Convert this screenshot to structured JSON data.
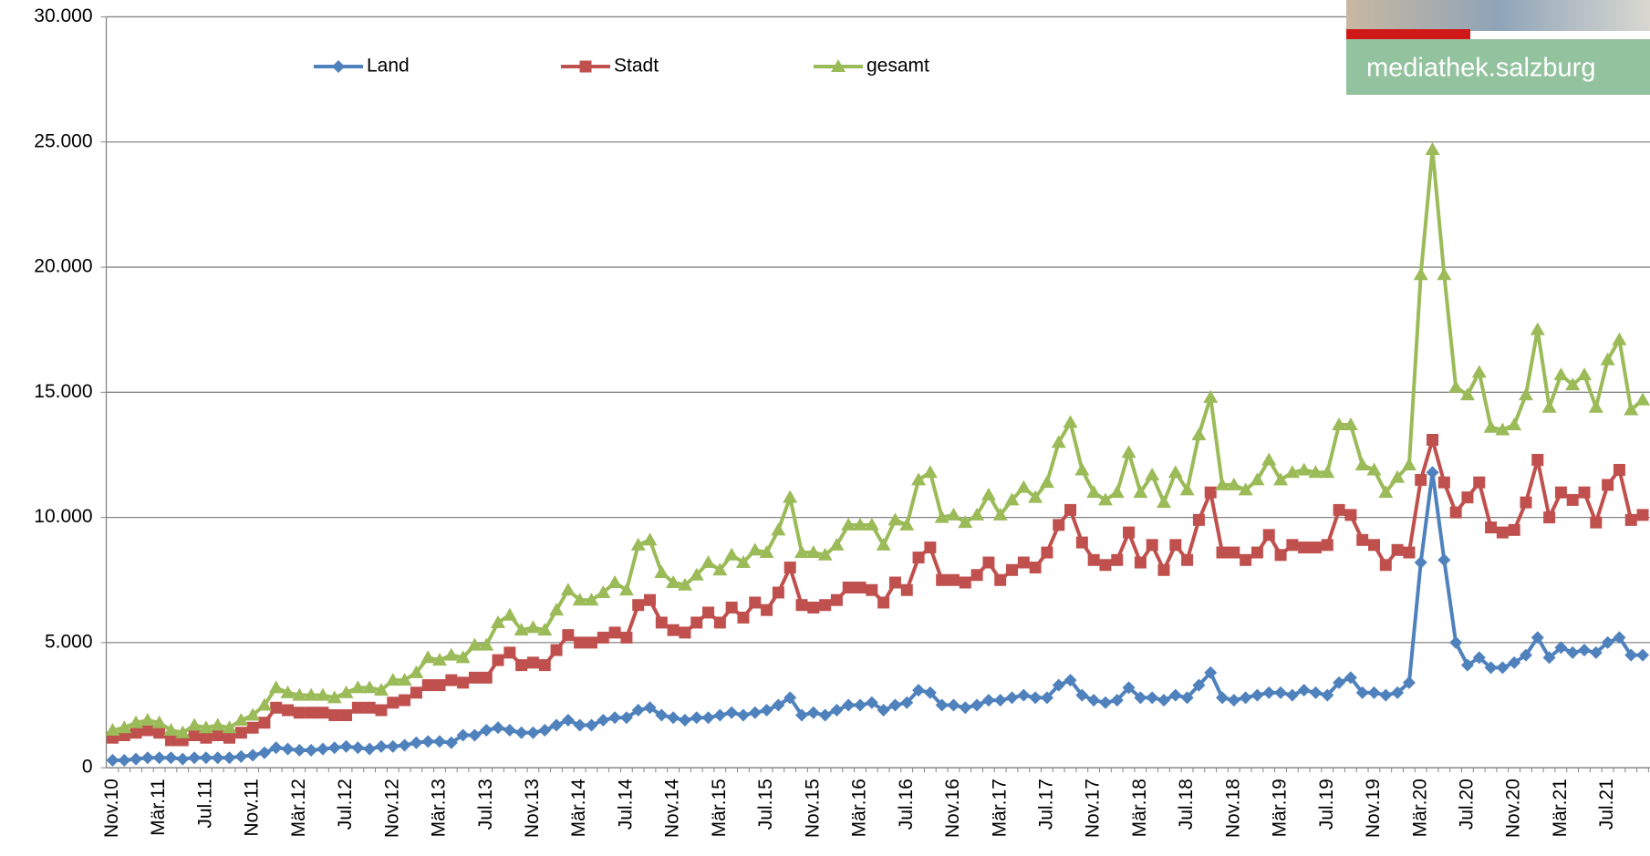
{
  "chart_data": {
    "type": "line",
    "categories": [
      "Nov.10",
      null,
      null,
      null,
      "Mär.11",
      null,
      null,
      null,
      "Jul.11",
      null,
      null,
      null,
      "Nov.11",
      null,
      null,
      null,
      "Mär.12",
      null,
      null,
      null,
      "Jul.12",
      null,
      null,
      null,
      "Nov.12",
      null,
      null,
      null,
      "Mär.13",
      null,
      null,
      null,
      "Jul.13",
      null,
      null,
      null,
      "Nov.13",
      null,
      null,
      null,
      "Mär.14",
      null,
      null,
      null,
      "Jul.14",
      null,
      null,
      null,
      "Nov.14",
      null,
      null,
      null,
      "Mär.15",
      null,
      null,
      null,
      "Jul.15",
      null,
      null,
      null,
      "Nov.15",
      null,
      null,
      null,
      "Mär.16",
      null,
      null,
      null,
      "Jul.16",
      null,
      null,
      null,
      "Nov.16",
      null,
      null,
      null,
      "Mär.17",
      null,
      null,
      null,
      "Jul.17",
      null,
      null,
      null,
      "Nov.17",
      null,
      null,
      null,
      "Mär.18",
      null,
      null,
      null,
      "Jul.18",
      null,
      null,
      null,
      "Nov.18",
      null,
      null,
      null,
      "Mär.19",
      null,
      null,
      null,
      "Jul.19",
      null,
      null,
      null,
      "Nov.19",
      null,
      null,
      null,
      "Mär.20",
      null,
      null,
      null,
      "Jul.20",
      null,
      null,
      null,
      "Nov.20",
      null,
      null,
      null,
      "Mär.21",
      null,
      null,
      null,
      "Jul.21",
      null,
      null,
      null
    ],
    "series": [
      {
        "name": "Land",
        "color": "#4f81bd",
        "marker": "diamond",
        "values": [
          300,
          300,
          350,
          400,
          400,
          400,
          350,
          400,
          400,
          400,
          400,
          450,
          500,
          600,
          800,
          750,
          700,
          700,
          750,
          800,
          850,
          800,
          750,
          850,
          850,
          900,
          1000,
          1050,
          1050,
          1000,
          1300,
          1300,
          1500,
          1600,
          1500,
          1400,
          1400,
          1500,
          1700,
          1900,
          1700,
          1700,
          1900,
          2000,
          2000,
          2300,
          2400,
          2100,
          2000,
          1900,
          2000,
          2000,
          2100,
          2200,
          2100,
          2200,
          2300,
          2500,
          2800,
          2100,
          2200,
          2100,
          2300,
          2500,
          2500,
          2600,
          2300,
          2500,
          2600,
          3100,
          3000,
          2500,
          2500,
          2400,
          2500,
          2700,
          2700,
          2800,
          2900,
          2800,
          2800,
          3300,
          3500,
          2900,
          2700,
          2600,
          2700,
          3200,
          2800,
          2800,
          2700,
          2900,
          2800,
          3300,
          3800,
          2800,
          2700,
          2800,
          2900,
          3000,
          3000,
          2900,
          3100,
          3000,
          2900,
          3400,
          3600,
          3000,
          3000,
          2900,
          3000,
          3400,
          8200,
          11800,
          8300,
          5000,
          4100,
          4400,
          4000,
          4000,
          4200,
          4500,
          5200,
          4400,
          4800,
          4600,
          4700,
          4600,
          5000,
          5200,
          4500,
          4500
        ]
      },
      {
        "name": "Stadt",
        "color": "#c0504d",
        "marker": "square",
        "values": [
          1200,
          1300,
          1400,
          1500,
          1400,
          1100,
          1100,
          1300,
          1200,
          1300,
          1200,
          1400,
          1600,
          1800,
          2400,
          2300,
          2200,
          2200,
          2200,
          2100,
          2100,
          2400,
          2400,
          2300,
          2600,
          2700,
          3000,
          3300,
          3300,
          3500,
          3400,
          3600,
          3600,
          4300,
          4600,
          4100,
          4200,
          4100,
          4700,
          5300,
          5000,
          5000,
          5200,
          5400,
          5200,
          6500,
          6700,
          5800,
          5500,
          5400,
          5800,
          6200,
          5800,
          6400,
          6000,
          6600,
          6300,
          7000,
          8000,
          6500,
          6400,
          6500,
          6700,
          7200,
          7200,
          7100,
          6600,
          7400,
          7100,
          8400,
          8800,
          7500,
          7500,
          7400,
          7700,
          8200,
          7500,
          7900,
          8200,
          8000,
          8600,
          9700,
          10300,
          9000,
          8300,
          8100,
          8300,
          9400,
          8200,
          8900,
          7900,
          8900,
          8300,
          9900,
          11000,
          8600,
          8600,
          8300,
          8600,
          9300,
          8500,
          8900,
          8800,
          8800,
          8900,
          10300,
          10100,
          9100,
          8900,
          8100,
          8700,
          8600,
          11500,
          13100,
          11400,
          10200,
          10800,
          11400,
          9600,
          9400,
          9500,
          10600,
          12300,
          10000,
          11000,
          10700,
          11000,
          9800,
          11300,
          11900,
          9900,
          10100
        ]
      },
      {
        "name": "gesamt",
        "color": "#9bbb59",
        "marker": "triangle",
        "values": [
          1500,
          1600,
          1800,
          1900,
          1800,
          1500,
          1400,
          1700,
          1600,
          1700,
          1600,
          1900,
          2100,
          2500,
          3200,
          3000,
          2900,
          2900,
          2900,
          2800,
          3000,
          3200,
          3200,
          3100,
          3500,
          3500,
          3800,
          4400,
          4300,
          4500,
          4400,
          4900,
          4900,
          5800,
          6100,
          5500,
          5600,
          5500,
          6300,
          7100,
          6700,
          6700,
          7000,
          7400,
          7100,
          8900,
          9100,
          7800,
          7400,
          7300,
          7700,
          8200,
          7900,
          8500,
          8200,
          8700,
          8600,
          9500,
          10800,
          8600,
          8600,
          8500,
          8900,
          9700,
          9700,
          9700,
          8900,
          9900,
          9700,
          11500,
          11800,
          10000,
          10100,
          9800,
          10100,
          10900,
          10100,
          10700,
          11200,
          10800,
          11400,
          13000,
          13800,
          11900,
          11000,
          10700,
          11000,
          12600,
          11000,
          11700,
          10600,
          11800,
          11100,
          13300,
          14800,
          11300,
          11300,
          11100,
          11500,
          12300,
          11500,
          11800,
          11900,
          11800,
          11800,
          13700,
          13700,
          12100,
          11900,
          11000,
          11600,
          12100,
          19700,
          24700,
          19700,
          15200,
          14900,
          15800,
          13600,
          13500,
          13700,
          14900,
          17500,
          14400,
          15700,
          15300,
          15700,
          14400,
          16300,
          17100,
          14300,
          14700
        ]
      }
    ],
    "ylim": [
      0,
      30000
    ],
    "yticks": [
      0,
      {
        "value": 5000,
        "label": "5.000"
      },
      {
        "value": 10000,
        "label": "10.000"
      },
      {
        "value": 15000,
        "label": "15.000"
      },
      {
        "value": 20000,
        "label": "20.000"
      },
      {
        "value": 25000,
        "label": "25.000"
      },
      {
        "value": 30000,
        "label": "30.000"
      }
    ],
    "grid": true,
    "legend": "top"
  },
  "logo": {
    "text": "mediathek.salzburg"
  }
}
